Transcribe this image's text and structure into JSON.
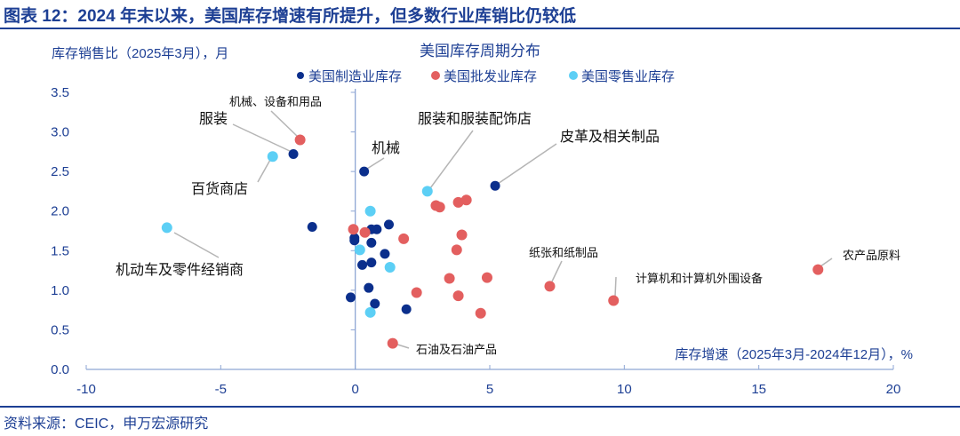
{
  "header": {
    "title": "图表 12：2024 年末以来，美国库存增速有所提升，但多数行业库销比仍较低"
  },
  "footer": {
    "source": "资料来源：CEIC，申万宏源研究"
  },
  "chart_data": {
    "type": "scatter",
    "title": "美国库存周期分布",
    "xlabel": "库存增速（2025年3月-2024年12月），%",
    "ylabel": "库存销售比（2025年3月），月",
    "xlim": [
      -10,
      20
    ],
    "ylim": [
      0,
      3.5
    ],
    "xticks": [
      "-10",
      "-5",
      "0",
      "5",
      "10",
      "15",
      "20"
    ],
    "yticks": [
      "0.0",
      "0.5",
      "1.0",
      "1.5",
      "2.0",
      "2.5",
      "3.0",
      "3.5"
    ],
    "grid": false,
    "legend_position": "top-center",
    "series": [
      {
        "name": "美国制造业库存",
        "color": "#0b2f8c",
        "points": [
          [
            -2.3,
            2.72
          ],
          [
            0.33,
            2.5
          ],
          [
            5.2,
            2.32
          ],
          [
            -1.6,
            1.8
          ],
          [
            -0.03,
            1.66
          ],
          [
            -0.03,
            1.63
          ],
          [
            0.6,
            1.77
          ],
          [
            0.8,
            1.77
          ],
          [
            1.25,
            1.83
          ],
          [
            0.6,
            1.6
          ],
          [
            1.1,
            1.46
          ],
          [
            0.26,
            1.32
          ],
          [
            0.6,
            1.35
          ],
          [
            0.5,
            1.03
          ],
          [
            -0.17,
            0.91
          ],
          [
            0.73,
            0.83
          ],
          [
            1.9,
            0.76
          ]
        ]
      },
      {
        "name": "美国批发业库存",
        "color": "#e35f5f",
        "points": [
          [
            -2.05,
            2.9
          ],
          [
            -0.07,
            1.77
          ],
          [
            0.36,
            1.73
          ],
          [
            1.8,
            1.65
          ],
          [
            3.0,
            2.07
          ],
          [
            3.14,
            2.05
          ],
          [
            3.83,
            2.11
          ],
          [
            4.13,
            2.14
          ],
          [
            3.96,
            1.7
          ],
          [
            3.77,
            1.51
          ],
          [
            3.5,
            1.15
          ],
          [
            4.9,
            1.16
          ],
          [
            2.28,
            0.97
          ],
          [
            3.83,
            0.93
          ],
          [
            4.66,
            0.71
          ],
          [
            1.39,
            0.33
          ],
          [
            7.23,
            1.05
          ],
          [
            9.6,
            0.87
          ],
          [
            17.2,
            1.26
          ]
        ]
      },
      {
        "name": "美国零售业库存",
        "color": "#5ccff5",
        "points": [
          [
            -3.07,
            2.69
          ],
          [
            -7.0,
            1.79
          ],
          [
            2.68,
            2.25
          ],
          [
            0.56,
            2.0
          ],
          [
            0.17,
            1.51
          ],
          [
            1.29,
            1.29
          ],
          [
            0.56,
            0.72
          ]
        ]
      }
    ],
    "annotations": [
      "机械、设备和用品",
      "服装",
      "百货商店",
      "机械",
      "服装和服装配饰店",
      "皮革及相关制品",
      "机动车及零件经销商",
      "纸张和纸制品",
      "计算机和计算机外围设备",
      "农产品原料",
      "石油及石油产品"
    ]
  }
}
